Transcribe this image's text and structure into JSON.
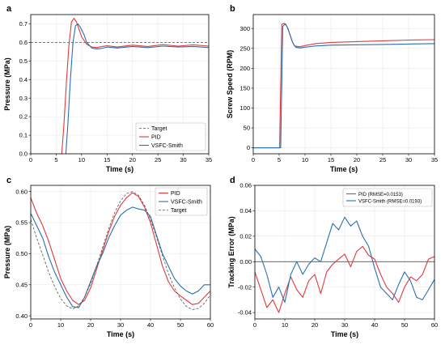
{
  "colors": {
    "pid": "#e0393e",
    "vsfc": "#2b6fb0",
    "target": "#555555",
    "zero": "#333333"
  },
  "chart_data": [
    {
      "id": "a",
      "panel_label": "a",
      "type": "line",
      "xlabel": "Time (s)",
      "ylabel": "Pressure (MPa)",
      "xlim": [
        0,
        35
      ],
      "ylim": [
        0,
        0.75
      ],
      "xticks": [
        0,
        5,
        10,
        15,
        20,
        25,
        30,
        35
      ],
      "yticks": [
        0.0,
        0.1,
        0.2,
        0.3,
        0.4,
        0.5,
        0.6,
        0.7
      ],
      "grid": true,
      "legend_position": "bottom-right",
      "series": [
        {
          "name": "Target",
          "style": "dashed",
          "color_key": "target",
          "x": [
            0,
            35
          ],
          "y": [
            0.6,
            0.6
          ]
        },
        {
          "name": "PID",
          "style": "solid",
          "color_key": "pid",
          "x": [
            6.1,
            6.5,
            7.0,
            7.5,
            8.0,
            8.5,
            9.0,
            9.5,
            10,
            11,
            12,
            13,
            14,
            15,
            17,
            20,
            23,
            26,
            29,
            32,
            35
          ],
          "y": [
            0.0,
            0.15,
            0.38,
            0.58,
            0.71,
            0.73,
            0.71,
            0.67,
            0.63,
            0.59,
            0.575,
            0.572,
            0.578,
            0.582,
            0.575,
            0.585,
            0.578,
            0.588,
            0.58,
            0.587,
            0.58
          ]
        },
        {
          "name": "VSFC-Smith",
          "style": "solid",
          "color_key": "vsfc",
          "x": [
            6.9,
            7.3,
            7.8,
            8.3,
            8.8,
            9.3,
            9.8,
            10.5,
            11,
            12,
            13,
            14,
            15,
            17,
            20,
            23,
            26,
            29,
            32,
            35
          ],
          "y": [
            0.0,
            0.16,
            0.4,
            0.6,
            0.69,
            0.7,
            0.68,
            0.64,
            0.6,
            0.57,
            0.565,
            0.568,
            0.575,
            0.57,
            0.578,
            0.572,
            0.58,
            0.575,
            0.578,
            0.572
          ]
        }
      ]
    },
    {
      "id": "b",
      "panel_label": "b",
      "type": "line",
      "xlabel": "Time (s)",
      "ylabel": "Screw Speed (RPM)",
      "xlim": [
        0,
        35
      ],
      "ylim": [
        -15,
        335
      ],
      "xticks": [
        0,
        5,
        10,
        15,
        20,
        25,
        30,
        35
      ],
      "yticks": [
        0,
        50,
        100,
        150,
        200,
        250,
        300
      ],
      "grid": true,
      "series": [
        {
          "name": "PID",
          "style": "solid",
          "color_key": "pid",
          "x": [
            0,
            5.1,
            5.5,
            6.0,
            6.5,
            7.0,
            7.5,
            8.0,
            9.0,
            10,
            12,
            15,
            20,
            25,
            30,
            35
          ],
          "y": [
            0,
            0,
            310,
            313,
            305,
            288,
            268,
            256,
            254,
            257,
            262,
            265,
            267,
            269,
            271,
            272
          ]
        },
        {
          "name": "VSFC-Smith",
          "style": "solid",
          "color_key": "vsfc",
          "x": [
            0,
            5.3,
            5.7,
            6.2,
            6.7,
            7.2,
            7.7,
            8.2,
            9.0,
            10,
            12,
            15,
            20,
            25,
            30,
            35
          ],
          "y": [
            0,
            0,
            305,
            312,
            300,
            280,
            262,
            253,
            251,
            253,
            256,
            258,
            259,
            260,
            261,
            262
          ]
        }
      ]
    },
    {
      "id": "c",
      "panel_label": "c",
      "type": "line",
      "xlabel": "Time (s)",
      "ylabel": "Pressure (MPa)",
      "xlim": [
        0,
        60
      ],
      "ylim": [
        0.395,
        0.61
      ],
      "xticks": [
        0,
        10,
        20,
        30,
        40,
        50,
        60
      ],
      "yticks": [
        0.4,
        0.45,
        0.5,
        0.55,
        0.6
      ],
      "grid": true,
      "legend_position": "top-right",
      "series": [
        {
          "name": "PID",
          "style": "solid",
          "color_key": "pid",
          "x": [
            0,
            2,
            4,
            6,
            8,
            10,
            12,
            14,
            16,
            18,
            20,
            22,
            24,
            26,
            28,
            30,
            32,
            34,
            36,
            38,
            40,
            42,
            44,
            46,
            48,
            50,
            52,
            54,
            56,
            58,
            60
          ],
          "y": [
            0.59,
            0.565,
            0.545,
            0.52,
            0.49,
            0.46,
            0.44,
            0.425,
            0.418,
            0.425,
            0.445,
            0.475,
            0.505,
            0.535,
            0.56,
            0.578,
            0.59,
            0.598,
            0.592,
            0.575,
            0.55,
            0.515,
            0.48,
            0.455,
            0.44,
            0.432,
            0.425,
            0.418,
            0.42,
            0.43,
            0.44
          ]
        },
        {
          "name": "VSFC-Smith",
          "style": "solid",
          "color_key": "vsfc",
          "x": [
            0,
            2,
            4,
            6,
            8,
            10,
            12,
            14,
            16,
            18,
            20,
            22,
            24,
            26,
            28,
            30,
            32,
            34,
            36,
            38,
            40,
            42,
            44,
            46,
            48,
            50,
            52,
            54,
            56,
            58,
            60
          ],
          "y": [
            0.565,
            0.545,
            0.525,
            0.495,
            0.47,
            0.45,
            0.43,
            0.415,
            0.413,
            0.43,
            0.455,
            0.48,
            0.5,
            0.525,
            0.545,
            0.562,
            0.57,
            0.575,
            0.572,
            0.57,
            0.56,
            0.53,
            0.5,
            0.48,
            0.46,
            0.448,
            0.44,
            0.435,
            0.44,
            0.45,
            0.45
          ]
        },
        {
          "name": "Target",
          "style": "dashed",
          "color_key": "target",
          "x": [
            0,
            2,
            4,
            6,
            8,
            10,
            12,
            14,
            16,
            18,
            20,
            22,
            24,
            26,
            28,
            30,
            32,
            34,
            36,
            38,
            40,
            42,
            44,
            46,
            48,
            50,
            52,
            54,
            56,
            58,
            60
          ],
          "y": [
            0.555,
            0.525,
            0.498,
            0.47,
            0.447,
            0.428,
            0.416,
            0.411,
            0.416,
            0.43,
            0.452,
            0.48,
            0.51,
            0.54,
            0.566,
            0.585,
            0.597,
            0.6,
            0.594,
            0.578,
            0.555,
            0.527,
            0.497,
            0.468,
            0.445,
            0.427,
            0.415,
            0.41,
            0.412,
            0.42,
            0.434
          ]
        }
      ]
    },
    {
      "id": "d",
      "panel_label": "d",
      "type": "line",
      "xlabel": "Time (s)",
      "ylabel": "Tracking Error (MPa)",
      "xlim": [
        0,
        60
      ],
      "ylim": [
        -0.045,
        0.06
      ],
      "xticks": [
        0,
        10,
        20,
        30,
        40,
        50,
        60
      ],
      "yticks": [
        -0.04,
        -0.02,
        0.0,
        0.02,
        0.04,
        0.06
      ],
      "grid": true,
      "legend_position": "top-right",
      "series": [
        {
          "name": "PID (RMSE=0.0153)",
          "style": "solid",
          "color_key": "pid",
          "x": [
            0,
            2,
            4,
            6,
            8,
            10,
            12,
            14,
            16,
            18,
            20,
            22,
            24,
            26,
            28,
            30,
            32,
            34,
            36,
            38,
            40,
            42,
            44,
            46,
            48,
            50,
            52,
            54,
            56,
            58,
            60
          ],
          "y": [
            -0.008,
            -0.022,
            -0.036,
            -0.03,
            -0.04,
            -0.025,
            -0.012,
            -0.022,
            -0.028,
            -0.015,
            -0.01,
            -0.025,
            -0.008,
            -0.002,
            0.002,
            0.006,
            -0.004,
            0.008,
            0.012,
            0.005,
            0.002,
            -0.01,
            -0.02,
            -0.025,
            -0.032,
            -0.02,
            -0.012,
            -0.015,
            -0.01,
            0.002,
            0.004
          ]
        },
        {
          "name": "VSFC-Smith (RMSE=0.0193)",
          "style": "solid",
          "color_key": "vsfc",
          "x": [
            0,
            2,
            4,
            6,
            8,
            10,
            12,
            14,
            16,
            18,
            20,
            22,
            24,
            26,
            28,
            30,
            32,
            34,
            36,
            38,
            40,
            42,
            44,
            46,
            48,
            50,
            52,
            54,
            56,
            58,
            60
          ],
          "y": [
            0.01,
            0.004,
            -0.01,
            -0.028,
            -0.02,
            -0.032,
            -0.01,
            0.0,
            -0.01,
            -0.002,
            0.003,
            0.0,
            0.015,
            0.03,
            0.025,
            0.035,
            0.028,
            0.032,
            0.02,
            0.012,
            -0.005,
            -0.02,
            -0.025,
            -0.03,
            -0.018,
            -0.008,
            -0.015,
            -0.028,
            -0.03,
            -0.022,
            -0.014
          ]
        }
      ]
    }
  ]
}
